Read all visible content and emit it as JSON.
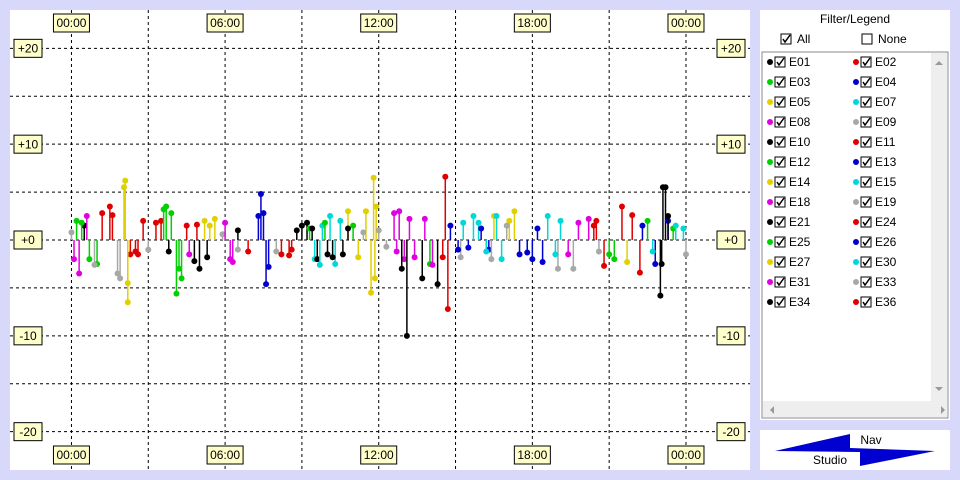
{
  "chart_data": {
    "type": "stem",
    "xlim": [
      -2.4,
      26.5
    ],
    "ylim": [
      -24,
      24
    ],
    "xticks": [
      {
        "value": 0,
        "label": "00:00"
      },
      {
        "value": 6,
        "label": "06:00"
      },
      {
        "value": 12,
        "label": "12:00"
      },
      {
        "value": 18,
        "label": "18:00"
      },
      {
        "value": 24,
        "label": "00:00"
      }
    ],
    "yticks": [
      {
        "value": 20,
        "label": "+20"
      },
      {
        "value": 10,
        "label": "+10"
      },
      {
        "value": 0,
        "label": "+0"
      },
      -10,
      -20
    ],
    "minor_xticks": [
      3,
      9,
      15,
      21
    ],
    "minor_yticks": [
      15,
      5,
      -5,
      -15
    ],
    "grid": true,
    "series": [
      {
        "name": "E01",
        "color": "#000000",
        "x": [
          0.5,
          3.8,
          6.5,
          9.2,
          10.6,
          23.2
        ],
        "values": [
          1.5,
          -1.2,
          1,
          1.8,
          -1.5,
          5.5
        ]
      },
      {
        "name": "E02",
        "color": "#e00000",
        "x": [
          1.2,
          2.3,
          3.5,
          4.5,
          8.6,
          20.5
        ],
        "values": [
          2.8,
          -1.5,
          2,
          1.5,
          -1,
          2
        ]
      },
      {
        "name": "E03",
        "color": "#00d000",
        "x": [
          0.2,
          1,
          3.7,
          4.1,
          9.3,
          21.2
        ],
        "values": [
          2,
          -2.5,
          3.5,
          -5.6,
          1.2,
          -2
        ]
      },
      {
        "name": "E04",
        "color": "#0000d0",
        "x": [
          7.4,
          7.6,
          14.8,
          17.5,
          18.2,
          22.8
        ],
        "values": [
          4.8,
          -4.6,
          1.5,
          -1.5,
          1.2,
          -2.5
        ]
      },
      {
        "name": "E05",
        "color": "#e0d000",
        "x": [
          2.1,
          2.2,
          5.2,
          11.2,
          11.8,
          16.5
        ],
        "values": [
          6.2,
          -6.5,
          2,
          -1.8,
          6.5,
          2.5
        ]
      },
      {
        "name": "E07",
        "color": "#00d8d8",
        "x": [
          9.8,
          10.3,
          15.7,
          16.8,
          18.6,
          23.9
        ],
        "values": [
          1.5,
          -2.5,
          2.5,
          -2,
          2.5,
          1.2
        ]
      },
      {
        "name": "E08",
        "color": "#e000e0",
        "x": [
          0.3,
          6.2,
          12.6,
          13,
          13.8,
          19.4
        ],
        "values": [
          -3.5,
          -2,
          2.8,
          -2,
          2.2,
          -1.5
        ]
      },
      {
        "name": "E09",
        "color": "#a8a8a8",
        "x": [
          0,
          1.9,
          5.9,
          12.3,
          15.2,
          19
        ],
        "values": [
          0.8,
          -4,
          0.6,
          -0.7,
          -1.8,
          -3
        ]
      },
      {
        "name": "E10",
        "color": "#000000",
        "x": [
          5,
          8.8,
          10.2,
          13.1,
          14.3,
          23.1
        ],
        "values": [
          -3,
          1,
          -1.8,
          -10,
          -4.6,
          5.5
        ]
      },
      {
        "name": "E11",
        "color": "#e00000",
        "x": [
          1.5,
          2.8,
          6.9,
          14.6,
          14.7,
          21.5
        ],
        "values": [
          3.5,
          2,
          -1.2,
          6.6,
          -7.2,
          3.5
        ]
      },
      {
        "name": "E12",
        "color": "#00d000",
        "x": [
          0.7,
          3.9,
          4.3,
          11,
          14,
          22.5
        ],
        "values": [
          -2,
          2.8,
          -4,
          1.5,
          -2.5,
          2
        ]
      },
      {
        "name": "E13",
        "color": "#0000d0",
        "x": [
          7.3,
          15.5,
          16.3,
          17.8,
          18.4,
          22.3
        ],
        "values": [
          2.5,
          -0.8,
          -1,
          -1.3,
          -2.3,
          1.5
        ]
      },
      {
        "name": "E14",
        "color": "#e0d000",
        "x": [
          2.05,
          5.6,
          10.8,
          11.7,
          11.9,
          17.1
        ],
        "values": [
          5.5,
          2.2,
          3,
          -5.5,
          3.5,
          2
        ]
      },
      {
        "name": "E15",
        "color": "#00d8d8",
        "x": [
          9.5,
          10.5,
          15.9,
          16.6,
          18.9,
          22.7
        ],
        "values": [
          -2,
          2,
          1.8,
          2.5,
          -1.5,
          -1.2
        ]
      },
      {
        "name": "E18",
        "color": "#e000e0",
        "x": [
          0.1,
          4.6,
          6,
          12.8,
          13.4,
          20.2
        ],
        "values": [
          -2,
          -1.5,
          1.8,
          3,
          -1.8,
          2.2
        ]
      },
      {
        "name": "E19",
        "color": "#a8a8a8",
        "x": [
          1.8,
          8,
          12,
          17,
          19.6,
          24
        ],
        "values": [
          -3.5,
          -1.2,
          1,
          1.5,
          -3,
          -1.5
        ]
      },
      {
        "name": "E21",
        "color": "#000000",
        "x": [
          4.8,
          9,
          9.6,
          10.8,
          13.7,
          23
        ],
        "values": [
          -2.2,
          1.5,
          -2,
          1.2,
          -4,
          -5.8
        ]
      },
      {
        "name": "E24",
        "color": "#e00000",
        "x": [
          2.6,
          3.3,
          8.2,
          14.5,
          20.8,
          21.9
        ],
        "values": [
          -1.5,
          1.8,
          -1.5,
          -1.8,
          -2.7,
          2.6
        ]
      },
      {
        "name": "E25",
        "color": "#00d000",
        "x": [
          0.4,
          3.6,
          4.2,
          9.9,
          21,
          23.5
        ],
        "values": [
          1.8,
          3.2,
          -3,
          1.8,
          -1.5,
          1.2
        ]
      },
      {
        "name": "E26",
        "color": "#0000d0",
        "x": [
          7.5,
          7.7,
          15.1,
          16,
          18,
          23.3
        ],
        "values": [
          2.8,
          -2.8,
          -1,
          1.2,
          -2,
          2
        ]
      },
      {
        "name": "E27",
        "color": "#e0d000",
        "x": [
          2.2,
          5.4,
          11.5,
          11.85,
          17.3,
          21.7
        ],
        "values": [
          -4.5,
          1.5,
          3,
          -4,
          3,
          -2.3
        ]
      },
      {
        "name": "E30",
        "color": "#00d8d8",
        "x": [
          9.7,
          10.1,
          15.3,
          16.2,
          19.1,
          23.6
        ],
        "values": [
          -2.6,
          2.5,
          1.8,
          -1.2,
          2,
          1.5
        ]
      },
      {
        "name": "E31",
        "color": "#e000e0",
        "x": [
          0.6,
          6.3,
          12.7,
          13.2,
          14.1,
          19.8
        ],
        "values": [
          2.5,
          -2.3,
          -1.2,
          2.2,
          -2.6,
          1.8
        ]
      },
      {
        "name": "E33",
        "color": "#a8a8a8",
        "x": [
          0.9,
          3,
          6.5,
          11.4,
          16.4,
          20.6
        ],
        "values": [
          -2.6,
          -1,
          -1,
          0.8,
          -2,
          -1.2
        ]
      },
      {
        "name": "E34",
        "color": "#000000",
        "x": [
          5.3,
          9.4,
          10,
          12.9,
          23.05,
          23.3
        ],
        "values": [
          -1.8,
          1.2,
          -1.5,
          -3,
          -2.5,
          2.5
        ]
      },
      {
        "name": "E36",
        "color": "#e00000",
        "x": [
          1.6,
          2.5,
          4.9,
          8.5,
          20.4,
          22.2
        ],
        "values": [
          2.6,
          -1.2,
          1.6,
          -1.6,
          1.5,
          -3.4
        ]
      }
    ]
  },
  "ui": {
    "legend_title": "Filter/Legend",
    "all_label": "All",
    "none_label": "None",
    "nav_label": "Nav",
    "studio_label": "Studio"
  }
}
